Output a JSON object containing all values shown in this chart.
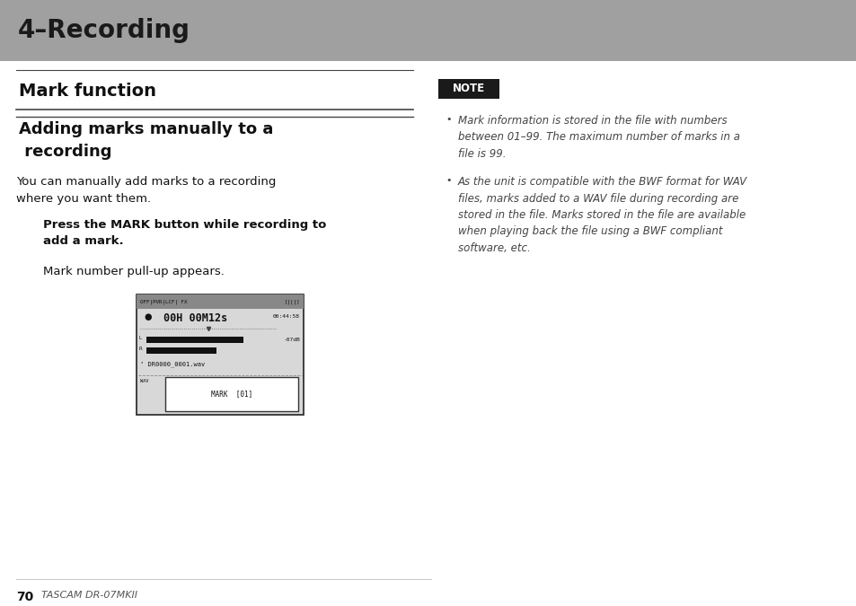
{
  "bg_color": "#ffffff",
  "header_bg": "#a0a0a0",
  "header_text": "4–Recording",
  "header_text_color": "#1a1a1a",
  "header_font_size": 20,
  "section_title": "Mark function",
  "section_title_fontsize": 14,
  "subsection_title_line1": "Adding marks manually to a",
  "subsection_title_line2": " recording",
  "subsection_fontsize": 13,
  "body_text": "You can manually add marks to a recording\nwhere you want them.",
  "body_fontsize": 9.5,
  "instruction_text": "Press the MARK button while recording to\nadd a mark.",
  "instruction_fontsize": 9.5,
  "followup_text": "Mark number pull-up appears.",
  "followup_fontsize": 9.5,
  "note_label": "NOTE",
  "note_bg": "#1a1a1a",
  "note_text_color": "#ffffff",
  "note_label_fontsize": 8.5,
  "note_bullet1": "Mark information is stored in the file with numbers\nbetween 01–99. The maximum number of marks in a\nfile is 99.",
  "note_bullet2": "As the unit is compatible with the BWF format for WAV\nfiles, marks added to a WAV file during recording are\nstored in the file. Marks stored in the file are available\nwhen playing back the file using a BWF compliant\nsoftware, etc.",
  "note_fontsize": 8.5,
  "footer_page": "70",
  "footer_brand": "TASCAM DR-07MKII",
  "footer_fontsize": 8,
  "divider_color": "#444444",
  "note_color": "#444444"
}
